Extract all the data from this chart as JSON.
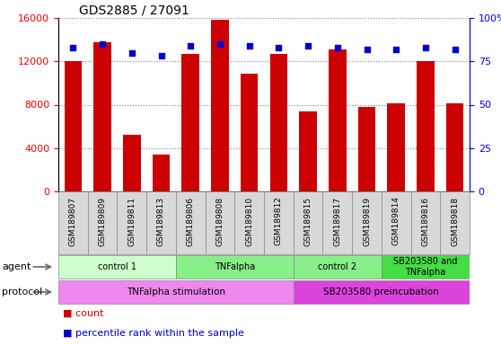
{
  "title": "GDS2885 / 27091",
  "samples": [
    "GSM189807",
    "GSM189809",
    "GSM189811",
    "GSM189813",
    "GSM189806",
    "GSM189808",
    "GSM189810",
    "GSM189812",
    "GSM189815",
    "GSM189817",
    "GSM189819",
    "GSM189814",
    "GSM189816",
    "GSM189818"
  ],
  "bar_values": [
    12000,
    13800,
    5200,
    3400,
    12700,
    15800,
    10900,
    12700,
    7400,
    13100,
    7800,
    8100,
    12000,
    8100
  ],
  "dot_values": [
    83,
    85,
    80,
    78,
    84,
    85,
    84,
    83,
    84,
    83,
    82,
    82,
    83,
    82
  ],
  "bar_color": "#cc0000",
  "dot_color": "#0000cc",
  "ylim_left": [
    0,
    16000
  ],
  "ylim_right": [
    0,
    100
  ],
  "yticks_left": [
    0,
    4000,
    8000,
    12000,
    16000
  ],
  "ytick_labels_right": [
    "0",
    "25",
    "50",
    "75",
    "100%"
  ],
  "yticks_right": [
    0,
    25,
    50,
    75,
    100
  ],
  "agent_groups": [
    {
      "label": "control 1",
      "start": 0,
      "end": 4,
      "color": "#ccffcc"
    },
    {
      "label": "TNFalpha",
      "start": 4,
      "end": 8,
      "color": "#88ee88"
    },
    {
      "label": "control 2",
      "start": 8,
      "end": 11,
      "color": "#88ee88"
    },
    {
      "label": "SB203580 and\nTNFalpha",
      "start": 11,
      "end": 14,
      "color": "#44dd44"
    }
  ],
  "protocol_groups": [
    {
      "label": "TNFalpha stimulation",
      "start": 0,
      "end": 8,
      "color": "#ee88ee"
    },
    {
      "label": "SB203580 preincubation",
      "start": 8,
      "end": 14,
      "color": "#dd44dd"
    }
  ],
  "agent_label": "agent",
  "protocol_label": "protocol",
  "legend_count_color": "#cc0000",
  "legend_dot_color": "#0000cc",
  "cell_bg": "#d8d8d8",
  "plot_bg": "#ffffff"
}
